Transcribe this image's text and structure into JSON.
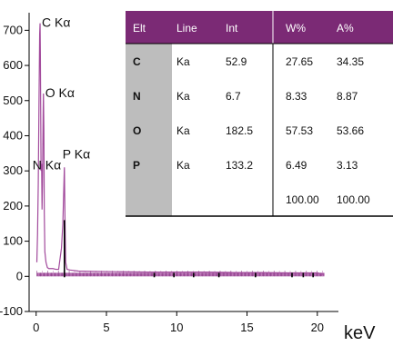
{
  "chart_data": {
    "type": "line",
    "xlabel": "keV",
    "ylabel": "",
    "xlim": [
      -0.5,
      21.5
    ],
    "ylim": [
      -100,
      750
    ],
    "x_ticks": [
      0,
      5,
      10,
      15,
      20
    ],
    "y_ticks": [
      -100,
      0,
      100,
      200,
      300,
      400,
      500,
      600,
      700
    ],
    "colors": {
      "spectrum": "#a24a9c",
      "background": "#9f4b9a",
      "peak_line": "#000000",
      "axis": "#000000",
      "table_header": "#7b2a75",
      "table_key_col": "#bdbdbd"
    },
    "spectrum": {
      "x": [
        0.05,
        0.1,
        0.15,
        0.2,
        0.25,
        0.28,
        0.3,
        0.35,
        0.39,
        0.42,
        0.45,
        0.5,
        0.52,
        0.55,
        0.58,
        0.62,
        0.7,
        0.8,
        0.9,
        1.0,
        1.2,
        1.4,
        1.6,
        1.8,
        1.9,
        2.0,
        2.01,
        2.05,
        2.1,
        2.2,
        2.4,
        3.0,
        4.0,
        6.0,
        8.0,
        10.0,
        12.0,
        14.0,
        16.0,
        18.0,
        20.0,
        20.5
      ],
      "y": [
        40,
        120,
        260,
        480,
        690,
        720,
        640,
        300,
        320,
        190,
        260,
        470,
        520,
        420,
        180,
        70,
        40,
        25,
        22,
        22,
        22,
        20,
        20,
        80,
        150,
        300,
        310,
        170,
        40,
        20,
        18,
        15,
        14,
        13,
        12,
        12,
        12,
        11,
        11,
        10,
        10,
        5
      ],
      "background_level": 10
    },
    "peaks": [
      {
        "label": "C Kα",
        "x": 0.28,
        "y": 720
      },
      {
        "label": "N Kα",
        "x": 0.39,
        "y": 320
      },
      {
        "label": "O Kα",
        "x": 0.52,
        "y": 520
      },
      {
        "label": "P Kα",
        "x": 2.01,
        "y": 310
      }
    ],
    "marker_lines_x": [
      2.01,
      8.4,
      9.8,
      11.2,
      13.0,
      15.6,
      18.2,
      19.0,
      19.7
    ],
    "table": {
      "columns": [
        "Elt",
        "Line",
        "Int",
        "W%",
        "A%"
      ],
      "rows": [
        [
          "C",
          "Ka",
          "52.9",
          "27.65",
          "34.35"
        ],
        [
          "N",
          "Ka",
          "6.7",
          "8.33",
          "8.87"
        ],
        [
          "O",
          "Ka",
          "182.5",
          "57.53",
          "53.66"
        ],
        [
          "P",
          "Ka",
          "133.2",
          "6.49",
          "3.13"
        ],
        [
          "",
          "",
          "",
          "100.00",
          "100.00"
        ]
      ]
    }
  }
}
